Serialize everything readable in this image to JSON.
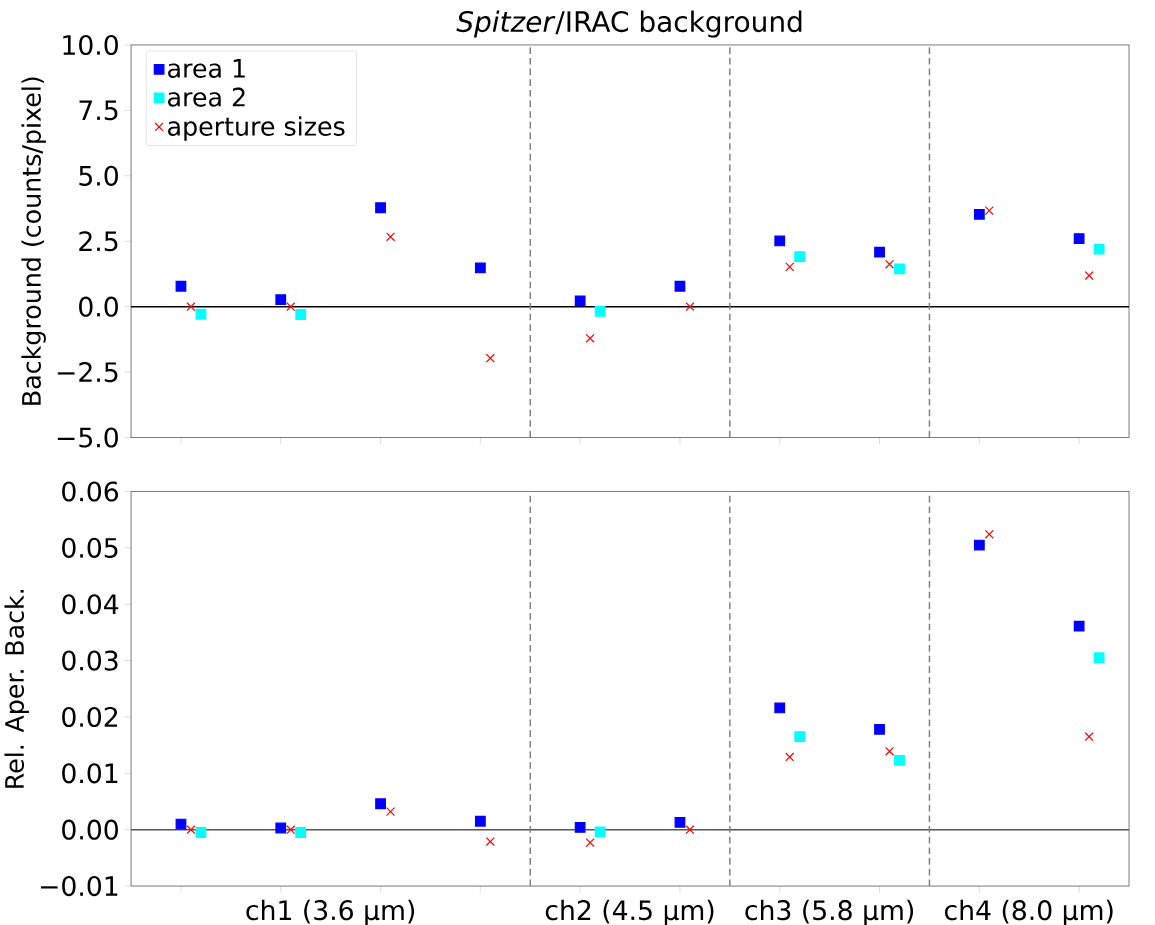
{
  "chart_data": [
    {
      "type": "scatter",
      "title": "*Spitzer*/IRAC background",
      "ylabel": "Background (counts/pixel)",
      "categories": [
        null,
        null,
        null,
        null,
        null,
        null,
        null,
        null,
        null,
        null
      ],
      "ylim": [
        -5,
        10
      ],
      "yticks": [
        {
          "value": -5,
          "label": "−5.0"
        },
        {
          "value": -2.5,
          "label": "−2.5"
        },
        {
          "value": 0,
          "label": "0.0"
        },
        {
          "value": 2.5,
          "label": "2.5"
        },
        {
          "value": 5,
          "label": "5.0"
        },
        {
          "value": 7.5,
          "label": "7.5"
        },
        {
          "value": 10,
          "label": "10.0"
        }
      ],
      "tick_labels": "y",
      "legend": "top left",
      "series": [
        {
          "name": "area 1",
          "color": "#0000ff",
          "marker": "square",
          "values": [
            0.78,
            0.27,
            3.78,
            1.48,
            0.22,
            0.78,
            2.51,
            2.08,
            3.53,
            2.6
          ]
        },
        {
          "name": "area 2",
          "color": "#00ffff",
          "marker": "square",
          "values": [
            -0.29,
            -0.3,
            null,
            null,
            -0.18,
            null,
            1.91,
            1.44,
            null,
            2.2
          ]
        },
        {
          "name": "aperture sizes",
          "color": "#ff0000",
          "marker": "cross",
          "values": [
            0.0,
            0.0,
            2.67,
            -1.97,
            -1.21,
            0.0,
            1.52,
            1.62,
            3.67,
            1.19
          ]
        }
      ],
      "ref_lines": [
        {
          "axis": "y",
          "value": 0,
          "color": "#000000",
          "line_style": "solid"
        }
      ]
    },
    {
      "type": "scatter",
      "ylabel": "Rel. Aper. Back.",
      "categories": [
        null,
        null,
        null,
        null,
        null,
        null,
        null,
        null,
        null,
        null
      ],
      "ylim": [
        -0.01,
        0.06
      ],
      "yticks": [
        {
          "value": -0.01,
          "label": "−0.01"
        },
        {
          "value": 0,
          "label": "0.00"
        },
        {
          "value": 0.01,
          "label": "0.01"
        },
        {
          "value": 0.02,
          "label": "0.02"
        },
        {
          "value": 0.03,
          "label": "0.03"
        },
        {
          "value": 0.04,
          "label": "0.04"
        },
        {
          "value": 0.05,
          "label": "0.05"
        },
        {
          "value": 0.06,
          "label": "0.06"
        }
      ],
      "annotations": [
        "ch1 (3.6 μm)",
        "ch2 (4.5 μm)",
        "ch3 (5.8 μm)",
        "ch4 (8.0 μm)"
      ],
      "series": [
        {
          "color": "#0000ff",
          "marker": "square",
          "values": [
            0.001,
            0.0003,
            0.0046,
            0.0015,
            0.0004,
            0.0013,
            0.0216,
            0.0178,
            0.0505,
            0.0361
          ]
        },
        {
          "color": "#00ffff",
          "marker": "square",
          "values": [
            -0.0005,
            -0.0005,
            null,
            null,
            -0.0004,
            null,
            0.0165,
            0.0123,
            null,
            0.0305
          ]
        },
        {
          "color": "#ff0000",
          "marker": "cross",
          "values": [
            0.0,
            0.0,
            0.0032,
            -0.0021,
            -0.0023,
            0.0,
            0.0129,
            0.0139,
            0.0524,
            0.0165
          ]
        }
      ],
      "ref_lines": [
        {
          "axis": "y",
          "value": 0,
          "color": "#555555",
          "line_style": "solid"
        }
      ]
    }
  ]
}
